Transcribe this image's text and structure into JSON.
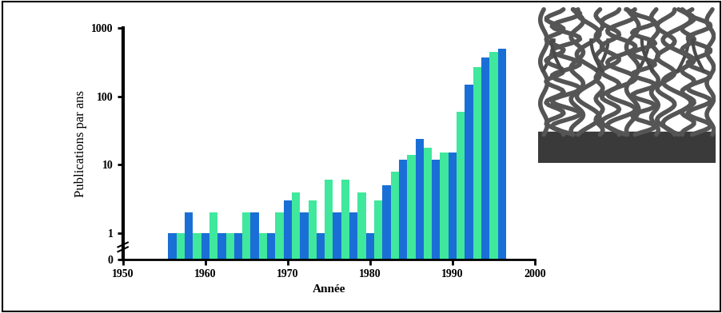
{
  "chart_data": {
    "type": "bar",
    "x": [
      1956,
      1957,
      1958,
      1959,
      1960,
      1961,
      1962,
      1963,
      1964,
      1965,
      1966,
      1967,
      1968,
      1969,
      1970,
      1971,
      1972,
      1973,
      1974,
      1975,
      1976,
      1977,
      1978,
      1979,
      1980,
      1981,
      1982,
      1983,
      1984,
      1985,
      1986,
      1987,
      1988,
      1989,
      1990,
      1991,
      1992,
      1993,
      1994,
      1995,
      1996
    ],
    "values": [
      1,
      1,
      2,
      1,
      1,
      2,
      1,
      1,
      1,
      2,
      2,
      1,
      1,
      2,
      3,
      4,
      2,
      3,
      1,
      6,
      2,
      6,
      2,
      4,
      1,
      3,
      5,
      8,
      12,
      14,
      24,
      18,
      12,
      15,
      15,
      60,
      150,
      270,
      370,
      450,
      500
    ],
    "colors": [
      "#1a6fd6",
      "#3fe89c",
      "#1a6fd6",
      "#3fe89c",
      "#1a6fd6",
      "#3fe89c",
      "#1a6fd6",
      "#3fe89c",
      "#1a6fd6",
      "#3fe89c",
      "#1a6fd6",
      "#3fe89c",
      "#1a6fd6",
      "#3fe89c",
      "#1a6fd6",
      "#3fe89c",
      "#1a6fd6",
      "#3fe89c",
      "#1a6fd6",
      "#3fe89c",
      "#1a6fd6",
      "#3fe89c",
      "#1a6fd6",
      "#3fe89c",
      "#1a6fd6",
      "#3fe89c",
      "#1a6fd6",
      "#3fe89c",
      "#1a6fd6",
      "#3fe89c",
      "#1a6fd6",
      "#3fe89c",
      "#1a6fd6",
      "#3fe89c",
      "#1a6fd6",
      "#3fe89c",
      "#1a6fd6",
      "#3fe89c",
      "#1a6fd6",
      "#3fe89c",
      "#1a6fd6"
    ],
    "x_label": "Année",
    "y_label": "Publications par ans",
    "xlim": [
      1950,
      2000
    ],
    "xticks": [
      1950,
      1960,
      1970,
      1980,
      1990,
      2000
    ],
    "ylim": [
      0,
      1000
    ],
    "yticks": [
      0,
      1,
      10,
      100,
      1000
    ],
    "log": "y",
    "grid": false
  }
}
